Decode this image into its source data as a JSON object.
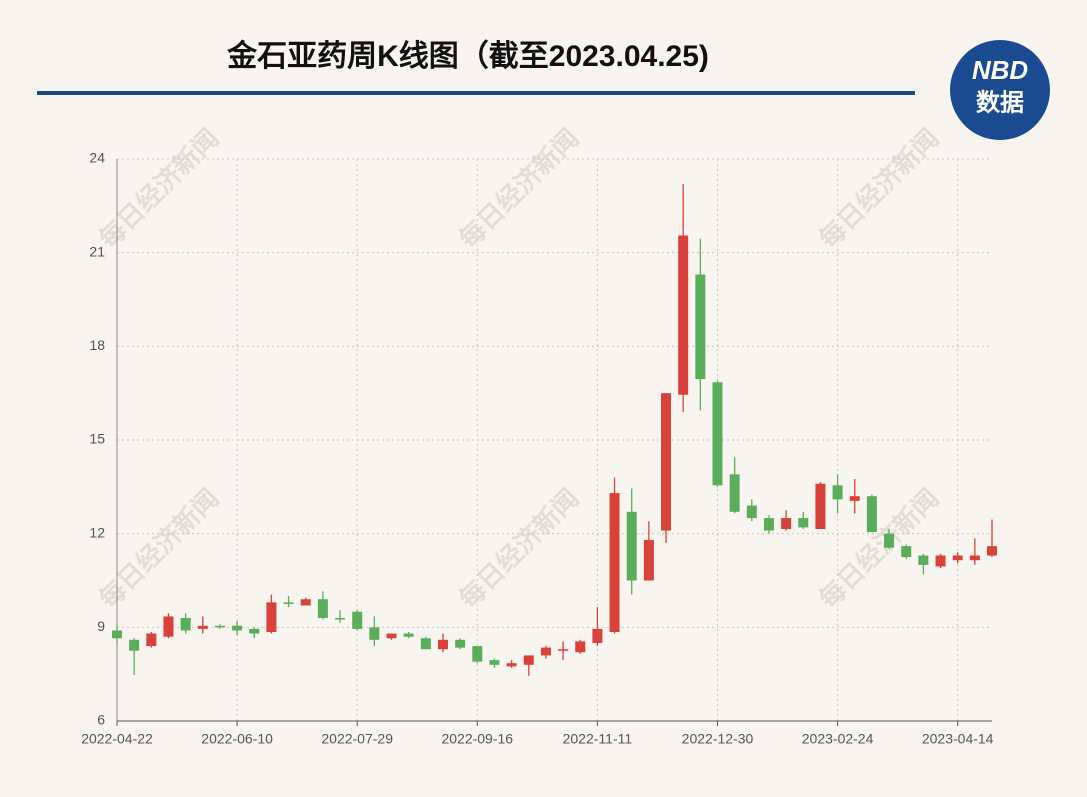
{
  "chart_data": {
    "type": "candlestick",
    "title": "金石亚药周K线图（截至2023.04.25)",
    "logo": [
      "NBD",
      "数据"
    ],
    "watermark": "每日经济新闻",
    "categories": [
      "2022-04-22",
      null,
      null,
      null,
      null,
      null,
      null,
      "2022-06-10",
      null,
      null,
      null,
      null,
      null,
      null,
      "2022-07-29",
      null,
      null,
      null,
      null,
      null,
      null,
      "2022-09-16",
      null,
      null,
      null,
      null,
      null,
      null,
      "2022-11-11",
      null,
      null,
      null,
      null,
      null,
      null,
      "2022-12-30",
      null,
      null,
      null,
      null,
      null,
      null,
      "2023-02-24",
      null,
      null,
      null,
      null,
      null,
      null,
      "2023-04-14",
      null,
      null
    ],
    "open": [
      8.9,
      8.6,
      8.4,
      8.7,
      9.3,
      8.95,
      9.05,
      9.05,
      8.95,
      8.85,
      9.8,
      9.7,
      9.9,
      9.3,
      9.5,
      9.0,
      8.65,
      8.8,
      8.65,
      8.3,
      8.6,
      8.4,
      7.95,
      7.75,
      7.8,
      8.1,
      8.25,
      8.2,
      8.5,
      8.85,
      12.7,
      10.5,
      12.1,
      16.45,
      20.3,
      16.85,
      13.9,
      12.9,
      12.5,
      12.15,
      12.5,
      12.15,
      13.55,
      13.05,
      13.2,
      12.0,
      11.6,
      11.3,
      10.95,
      11.15,
      11.15,
      11.3
    ],
    "high": [
      9.1,
      8.65,
      8.85,
      9.45,
      9.45,
      9.35,
      9.1,
      9.2,
      9.0,
      10.05,
      10.0,
      9.95,
      10.15,
      9.55,
      9.55,
      9.35,
      8.8,
      8.85,
      8.7,
      8.8,
      8.65,
      8.4,
      8.0,
      7.95,
      8.1,
      8.4,
      8.55,
      8.6,
      9.65,
      13.8,
      13.45,
      12.4,
      16.5,
      23.2,
      21.45,
      16.9,
      14.45,
      13.1,
      12.6,
      12.75,
      12.7,
      13.65,
      13.9,
      13.75,
      13.25,
      12.15,
      11.65,
      11.35,
      11.35,
      11.4,
      11.85,
      12.45
    ],
    "low": [
      8.5,
      7.47,
      8.35,
      8.65,
      8.8,
      8.8,
      8.95,
      8.75,
      8.65,
      8.8,
      9.65,
      9.7,
      9.25,
      9.15,
      8.9,
      8.4,
      8.6,
      8.65,
      8.3,
      8.2,
      8.3,
      7.85,
      7.7,
      7.7,
      7.45,
      8.0,
      7.95,
      8.15,
      8.4,
      8.8,
      10.05,
      10.5,
      11.7,
      15.9,
      15.95,
      13.5,
      12.65,
      12.4,
      12.0,
      12.1,
      12.15,
      12.15,
      12.65,
      12.65,
      12.05,
      11.5,
      11.2,
      10.7,
      10.9,
      11.05,
      11.0,
      11.25
    ],
    "close": [
      8.65,
      8.25,
      8.8,
      9.35,
      8.9,
      9.05,
      9.0,
      8.9,
      8.8,
      9.8,
      9.75,
      9.9,
      9.3,
      9.25,
      8.95,
      8.6,
      8.8,
      8.7,
      8.3,
      8.6,
      8.35,
      7.9,
      7.8,
      7.85,
      8.1,
      8.35,
      8.3,
      8.55,
      8.95,
      13.3,
      10.5,
      11.8,
      16.5,
      21.55,
      16.95,
      13.55,
      12.7,
      12.5,
      12.1,
      12.5,
      12.2,
      13.6,
      13.1,
      13.2,
      12.05,
      11.55,
      11.25,
      11.0,
      11.3,
      11.3,
      11.3,
      11.6
    ],
    "up_color": "#d9423b",
    "down_color": "#5aae5a",
    "ylim": [
      6,
      24
    ],
    "yticks": [
      6,
      9,
      12,
      15,
      18,
      21,
      24
    ],
    "grid": true
  }
}
